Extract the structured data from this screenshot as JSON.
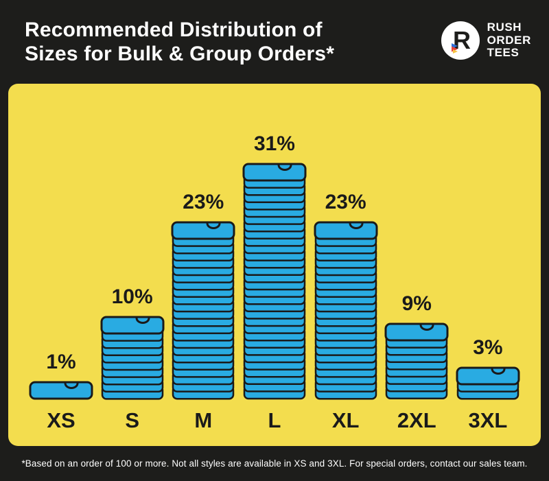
{
  "header": {
    "title_line1": "Recommended Distribution of",
    "title_line2": "Sizes for Bulk & Group Orders*",
    "logo": {
      "letter": "R",
      "name_lines": [
        "RUSH",
        "ORDER",
        "TEES"
      ]
    }
  },
  "chart_data": {
    "type": "bar",
    "style": "pictogram-shirt-stack",
    "title": "Recommended Distribution of Sizes for Bulk & Group Orders*",
    "categories": [
      "XS",
      "S",
      "M",
      "L",
      "XL",
      "2XL",
      "3XL"
    ],
    "values": [
      1,
      10,
      23,
      31,
      23,
      9,
      3
    ],
    "value_labels": [
      "1%",
      "10%",
      "23%",
      "31%",
      "23%",
      "9%",
      "3%"
    ],
    "unit": "%",
    "ylim": [
      0,
      31
    ],
    "colors": {
      "shirt": "#29ABE2",
      "outline": "#1A1A1A",
      "background": "#F3DD4E",
      "dark": "#1D1D1B",
      "white": "#FFFFFF",
      "logo_red": "#E8433A",
      "logo_blue": "#2E6FD8",
      "logo_yellow": "#F5C242"
    }
  },
  "footer": {
    "note": "*Based on an order of 100 or more. Not all styles are available in XS and 3XL. For special orders, contact our sales team."
  }
}
